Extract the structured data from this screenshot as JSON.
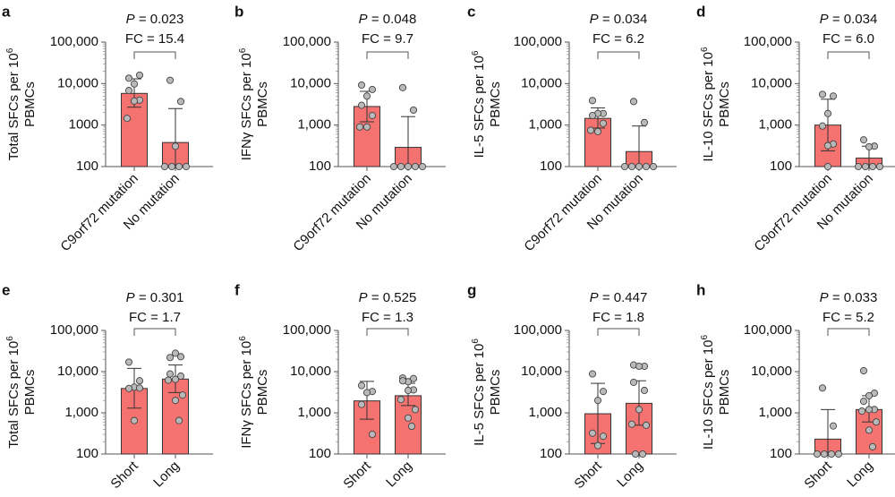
{
  "figure": {
    "colors": {
      "bar": "#f47370",
      "point": "#b9b9b9",
      "axis": "#555555"
    }
  },
  "chart_data": [
    {
      "panel": "a",
      "type": "bar",
      "yscale": "log",
      "ylabel": "Total SFCs per 10^6 PBMCs",
      "ylabel_line1": "Total SFCs per 10",
      "ylabel_sup": "6",
      "ylabel_line2": "PBMCs",
      "yticks": [
        100,
        1000,
        10000,
        100000
      ],
      "ytick_labels": [
        "100",
        "1000",
        "10,000",
        "100,000"
      ],
      "ylim": [
        100,
        100000
      ],
      "categories": [
        "C9orf72 mutation",
        "No mutation"
      ],
      "values": [
        5800,
        380
      ],
      "error_low": [
        2700,
        100
      ],
      "error_high": [
        13000,
        2500
      ],
      "points": [
        [
          13500,
          16000,
          9800,
          6800,
          4000,
          3800,
          1450
        ],
        [
          12000,
          3700,
          310,
          100,
          100,
          100,
          100
        ]
      ],
      "p_label": "P",
      "p_value": "= 0.023",
      "fc": "FC = 15.4"
    },
    {
      "panel": "b",
      "type": "bar",
      "yscale": "log",
      "ylabel": "IFNγ SFCs per 10^6 PBMCs",
      "ylabel_line1": "IFNγ SFCs per 10",
      "ylabel_sup": "6",
      "ylabel_line2": "PBMCs",
      "yticks": [
        100,
        1000,
        10000,
        100000
      ],
      "ytick_labels": [
        "100",
        "1,000",
        "10,000",
        "100,000"
      ],
      "ylim": [
        100,
        100000
      ],
      "categories": [
        "C9orf72 mutation",
        "No mutation"
      ],
      "values": [
        2800,
        290
      ],
      "error_low": [
        1200,
        100
      ],
      "error_high": [
        6500,
        1600
      ],
      "points": [
        [
          9200,
          7200,
          5000,
          3000,
          1700,
          900,
          900
        ],
        [
          8000,
          2300,
          100,
          100,
          100,
          100,
          100
        ]
      ],
      "p_label": "P",
      "p_value": "= 0.048",
      "fc": "FC = 9.7"
    },
    {
      "panel": "c",
      "type": "bar",
      "yscale": "log",
      "ylabel": "IL-5 SFCs per 10^6 PBMCs",
      "ylabel_line1": "IL-5 SFCs per 10",
      "ylabel_sup": "6",
      "ylabel_line2": "PBMCs",
      "yticks": [
        100,
        1000,
        10000,
        100000
      ],
      "ytick_labels": [
        "100",
        "1,000",
        "10,000",
        "100,000"
      ],
      "ylim": [
        100,
        100000
      ],
      "categories": [
        "C9orf72 mutation",
        "No mutation"
      ],
      "values": [
        1450,
        230
      ],
      "error_low": [
        850,
        100
      ],
      "error_high": [
        2600,
        950
      ],
      "points": [
        [
          3900,
          1900,
          1900,
          1700,
          1100,
          700,
          750
        ],
        [
          3700,
          1150,
          100,
          100,
          100,
          100,
          100
        ]
      ],
      "p_label": "P",
      "p_value": "= 0.034",
      "fc": "FC = 6.2"
    },
    {
      "panel": "d",
      "type": "bar",
      "yscale": "log",
      "ylabel": "IL-10 SFCs per 10^6 PBMCs",
      "ylabel_line1": "IL-10 SFCs per 10",
      "ylabel_sup": "6",
      "ylabel_line2": "PBMCs",
      "yticks": [
        100,
        1000,
        10000,
        100000
      ],
      "ytick_labels": [
        "100",
        "1,000",
        "10,000",
        "100,000"
      ],
      "ylim": [
        100,
        100000
      ],
      "categories": [
        "C9orf72 mutation",
        "No mutation"
      ],
      "values": [
        1000,
        160
      ],
      "error_low": [
        240,
        100
      ],
      "error_high": [
        4200,
        310
      ],
      "points": [
        [
          5500,
          5000,
          1900,
          950,
          350,
          320,
          100
        ],
        [
          440,
          310,
          300,
          100,
          100,
          100,
          100
        ]
      ],
      "p_label": "P",
      "p_value": "= 0.034",
      "fc": "FC = 6.0"
    },
    {
      "panel": "e",
      "type": "bar",
      "yscale": "log",
      "ylabel": "Total SFCs per 10^6 PBMCs",
      "ylabel_line1": "Total SFCs per 10",
      "ylabel_sup": "6",
      "ylabel_line2": "PBMCs",
      "yticks": [
        100,
        1000,
        10000,
        100000
      ],
      "ytick_labels": [
        "100",
        "1,000",
        "10,000",
        "100,000"
      ],
      "ylim": [
        100,
        100000
      ],
      "categories": [
        "Short",
        "Long"
      ],
      "values": [
        3900,
        6600
      ],
      "error_low": [
        1300,
        3100
      ],
      "error_high": [
        12000,
        14500
      ],
      "points": [
        [
          17000,
          6000,
          4200,
          3900,
          4000,
          650
        ],
        [
          22000,
          23000,
          28000,
          8800,
          7800,
          6500,
          6200,
          2700,
          2000,
          650
        ]
      ],
      "p_label": "P",
      "p_value": "= 0.301",
      "fc": "FC = 1.7"
    },
    {
      "panel": "f",
      "type": "bar",
      "yscale": "log",
      "ylabel": "IFNγ SFCs per 10^6 PBMCs",
      "ylabel_line1": "IFNγ SFCs per 10",
      "ylabel_sup": "6",
      "ylabel_line2": "PBMCs",
      "yticks": [
        100,
        1000,
        10000,
        100000
      ],
      "ytick_labels": [
        "100",
        "1,000",
        "10,000",
        "100,000"
      ],
      "ylim": [
        100,
        100000
      ],
      "categories": [
        "Short",
        "Long"
      ],
      "values": [
        1950,
        2600
      ],
      "error_low": [
        700,
        1500
      ],
      "error_high": [
        5800,
        5200
      ],
      "points": [
        [
          4600,
          3300,
          3100,
          1600,
          300
        ],
        [
          7000,
          6800,
          5700,
          6000,
          3600,
          3500,
          2100,
          1200,
          750,
          470
        ]
      ],
      "p_label": "P",
      "p_value": "= 0.525",
      "fc": "FC = 1.3"
    },
    {
      "panel": "g",
      "type": "bar",
      "yscale": "log",
      "ylabel": "IL-5 SFCs per 10^6 PBMCs",
      "ylabel_line1": "IL-5 SFCs per 10",
      "ylabel_sup": "6",
      "ylabel_line2": "PBMCs",
      "yticks": [
        100,
        1000,
        10000,
        100000
      ],
      "ytick_labels": [
        "100",
        "1,000",
        "10,000",
        "100,000"
      ],
      "ylim": [
        100,
        100000
      ],
      "categories": [
        "Short",
        "Long"
      ],
      "values": [
        950,
        1700
      ],
      "error_low": [
        180,
        500
      ],
      "error_high": [
        5200,
        6000
      ],
      "points": [
        [
          8800,
          3300,
          2000,
          320,
          270,
          160
        ],
        [
          14500,
          13500,
          13500,
          5500,
          3500,
          1200,
          530,
          500,
          100,
          100
        ]
      ],
      "p_label": "P",
      "p_value": "= 0.447",
      "fc": "FC = 1.8"
    },
    {
      "panel": "h",
      "type": "bar",
      "yscale": "log",
      "ylabel": "IL-10 SFCs per 10^6 PBMCs",
      "ylabel_line1": "IL-10 SFCs per 10",
      "ylabel_sup": "6",
      "ylabel_line2": "PBMCs",
      "yticks": [
        100,
        1000,
        10000,
        100000
      ],
      "ytick_labels": [
        "100",
        "1,000",
        "10,000",
        "100,000"
      ],
      "ylim": [
        100,
        100000
      ],
      "categories": [
        "Short",
        "Long"
      ],
      "values": [
        230,
        1200
      ],
      "error_low": [
        100,
        600
      ],
      "error_high": [
        1200,
        2600
      ],
      "points": [
        [
          4000,
          480,
          100,
          100,
          100,
          100
        ],
        [
          10500,
          3000,
          2600,
          1900,
          1200,
          1200,
          1100,
          600,
          380,
          150
        ]
      ],
      "p_label": "P",
      "p_value": "= 0.033",
      "fc": "FC = 5.2"
    }
  ]
}
